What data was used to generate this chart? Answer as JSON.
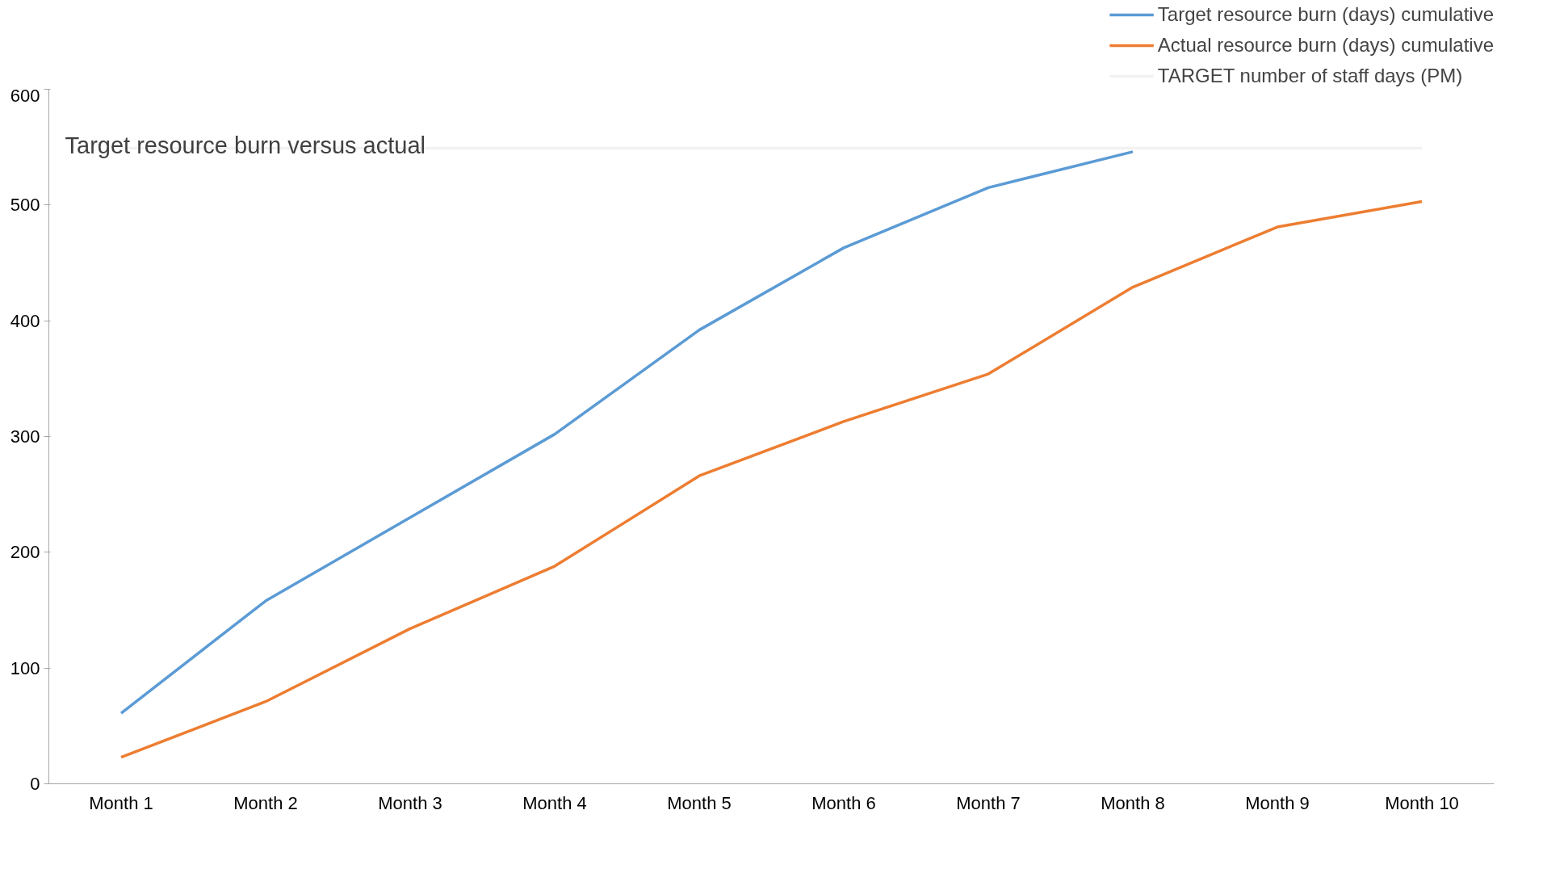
{
  "chart_data": {
    "type": "line",
    "title": "Target resource burn versus actual",
    "categories": [
      "Month 1",
      "Month 2",
      "Month 3",
      "Month 4",
      "Month 5",
      "Month 6",
      "Month 7",
      "Month 8",
      "Month 9",
      "Month 10"
    ],
    "series": [
      {
        "name": "Target resource burn (days) cumulative",
        "color": "#5b9bd5",
        "values": [
          61,
          158,
          230,
          302,
          392,
          463,
          515,
          546,
          null,
          null
        ]
      },
      {
        "name": "Actual resource burn (days) cumulative",
        "color": "#ed7d31",
        "values": [
          23,
          71,
          134,
          188,
          266,
          313,
          354,
          429,
          481,
          503
        ]
      },
      {
        "name": "TARGET number of staff days (PM)",
        "color": "#f2f2f2",
        "values": [
          549,
          549,
          549,
          549,
          549,
          549,
          549,
          549,
          549,
          549
        ]
      }
    ],
    "ylim": [
      0,
      600
    ],
    "yticks": [
      0,
      100,
      200,
      300,
      400,
      500,
      600
    ],
    "grid": false,
    "legend": "top right",
    "marker": "none",
    "line_style": "solid"
  }
}
